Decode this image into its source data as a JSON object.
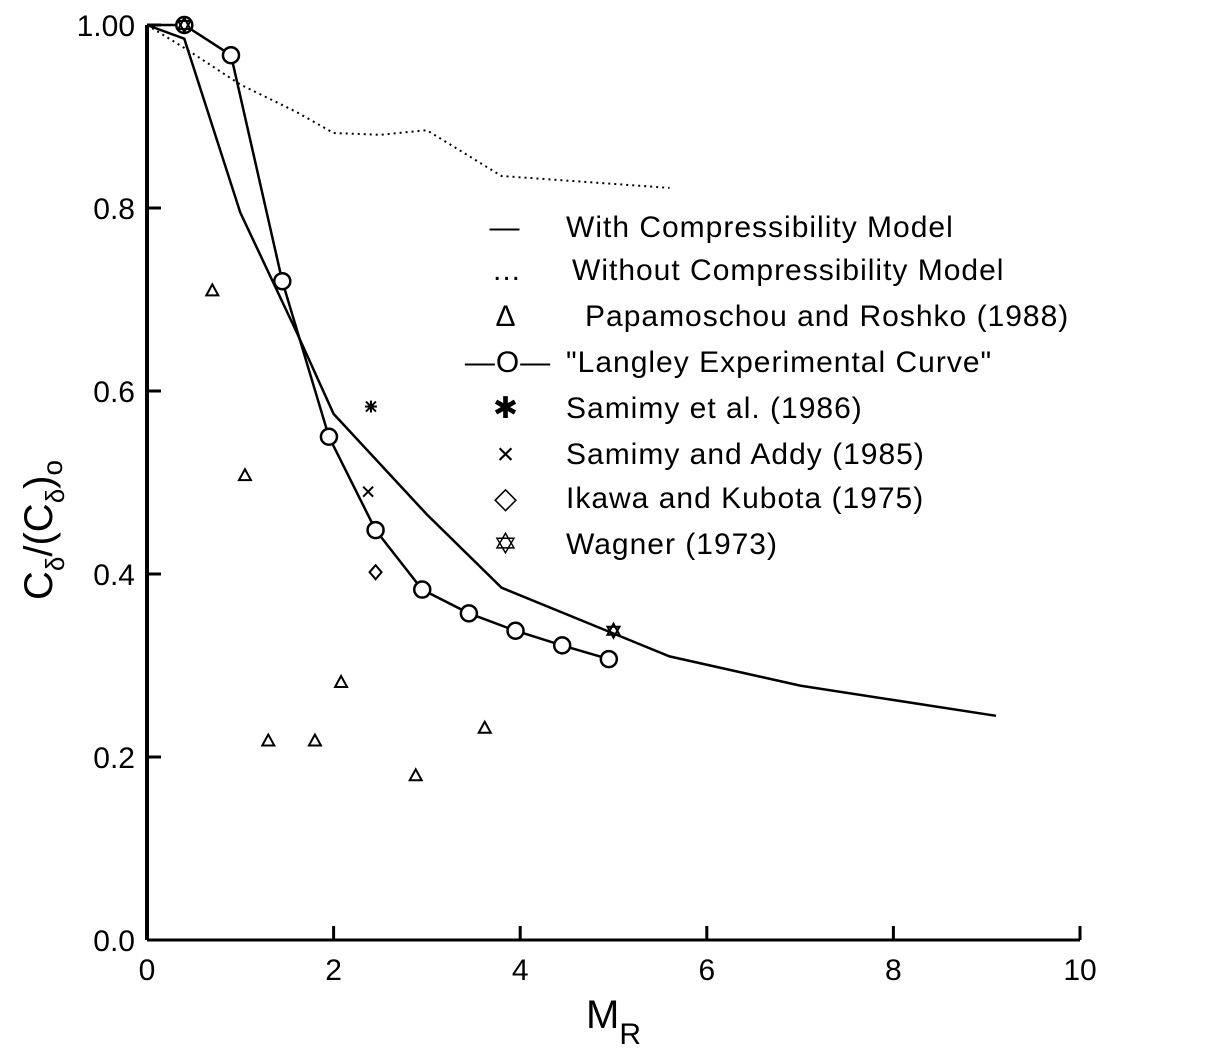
{
  "chart_data": {
    "type": "line",
    "x_axis": {
      "label": "M",
      "label_subscript": "R",
      "range": [
        0,
        10
      ],
      "ticks": [
        "0",
        "2",
        "4",
        "6",
        "8",
        "10"
      ],
      "tick_values": [
        0,
        2,
        4,
        6,
        8,
        10
      ]
    },
    "y_axis": {
      "label_parts": [
        "C",
        "δ",
        "/(C",
        "δ",
        ")",
        "o"
      ],
      "range": [
        0,
        1
      ],
      "ticks": [
        "0.0",
        "0.2",
        "0.4",
        "0.6",
        "0.8",
        "1.00"
      ],
      "tick_values": [
        0,
        0.2,
        0.4,
        0.6,
        0.8,
        1.0
      ]
    },
    "grid": false,
    "legend_position": "top-right",
    "series": [
      {
        "name": "With Compressibility Model",
        "legend_symbol": "—",
        "style": "solid-line",
        "x": [
          0,
          0.4,
          1.0,
          1.6,
          2.0,
          3.0,
          3.8,
          5.0,
          5.6,
          7.0,
          9.1
        ],
        "y": [
          1.0,
          0.985,
          0.795,
          0.665,
          0.575,
          0.465,
          0.385,
          0.335,
          0.31,
          0.278,
          0.245
        ]
      },
      {
        "name": "Without Compressibility Model",
        "legend_symbol": "...",
        "style": "dotted-line",
        "x": [
          0,
          0.4,
          1.0,
          1.6,
          2.0,
          2.5,
          3.0,
          3.8,
          4.5,
          5.6
        ],
        "y": [
          1.0,
          0.975,
          0.935,
          0.905,
          0.882,
          0.88,
          0.885,
          0.835,
          0.83,
          0.822
        ]
      },
      {
        "name": "Papamoschou and Roshko (1988)",
        "legend_symbol": "Δ",
        "style": "triangle-markers",
        "x": [
          0.7,
          1.05,
          1.3,
          1.8,
          2.08,
          2.88,
          3.62
        ],
        "y": [
          0.71,
          0.508,
          0.218,
          0.218,
          0.282,
          0.18,
          0.232
        ]
      },
      {
        "name": "\"Langley Experimental Curve\"",
        "legend_symbol": "—O—",
        "style": "line-circles",
        "x": [
          0,
          0.4,
          0.9,
          1.45,
          1.95,
          2.45,
          2.95,
          3.45,
          3.95,
          4.45,
          4.95
        ],
        "y": [
          1.0,
          1.0,
          0.967,
          0.72,
          0.55,
          0.448,
          0.383,
          0.357,
          0.338,
          0.322,
          0.307
        ]
      },
      {
        "name": "Samimy et al. (1986)",
        "legend_symbol": "✱",
        "style": "asterisk-markers",
        "x": [
          2.4
        ],
        "y": [
          0.583
        ]
      },
      {
        "name": "Samimy and Addy (1985)",
        "legend_symbol": "×",
        "style": "x-markers",
        "x": [
          2.37
        ],
        "y": [
          0.49
        ]
      },
      {
        "name": "Ikawa and Kubota (1975)",
        "legend_symbol": "◇",
        "style": "diamond-markers",
        "x": [
          2.45
        ],
        "y": [
          0.402
        ]
      },
      {
        "name": "Wagner (1973)",
        "legend_symbol": "✡",
        "style": "star-markers",
        "x": [
          0.4,
          5.0
        ],
        "y": [
          1.0,
          0.338
        ]
      }
    ]
  }
}
